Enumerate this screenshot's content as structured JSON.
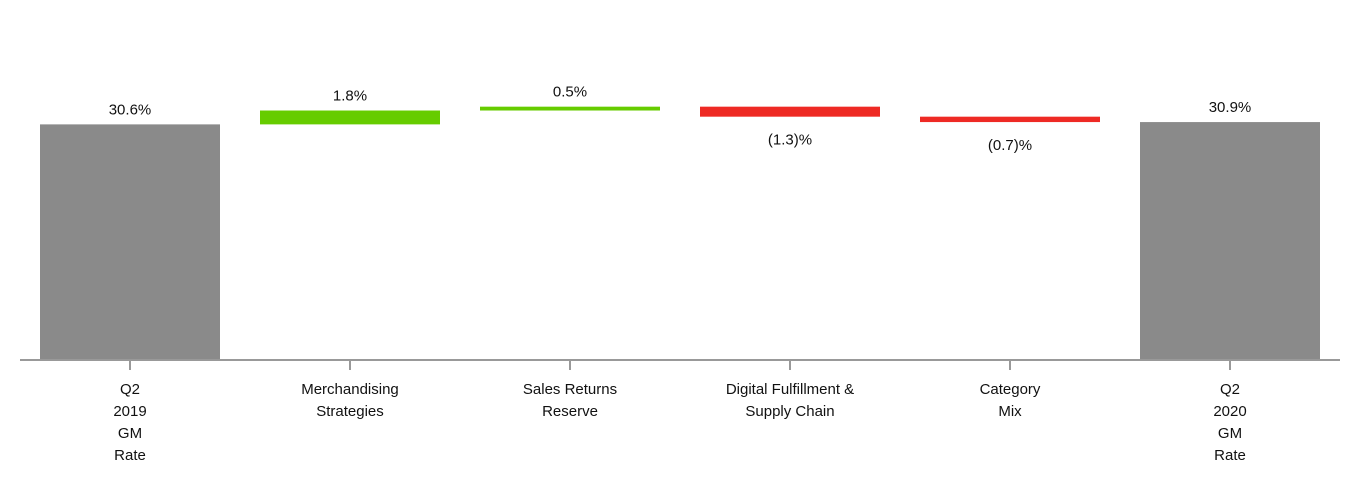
{
  "chart_data": {
    "type": "bar",
    "subtype": "waterfall",
    "categories": [
      [
        "Q2",
        "2019",
        "GM",
        "Rate"
      ],
      [
        "Merchandising",
        "Strategies"
      ],
      [
        "Sales Returns",
        "Reserve"
      ],
      [
        "Digital Fulfillment &",
        "Supply Chain"
      ],
      [
        "Category",
        "Mix"
      ],
      [
        "Q2",
        "2020",
        "GM",
        "Rate"
      ]
    ],
    "values": [
      30.6,
      1.8,
      0.5,
      -1.3,
      -0.7,
      30.9
    ],
    "kinds": [
      "total",
      "delta",
      "delta",
      "delta",
      "delta",
      "total"
    ],
    "data_labels": [
      "30.6%",
      "1.8%",
      "0.5%",
      "(1.3)%",
      "(0.7)%",
      "30.9%"
    ],
    "title": "",
    "xlabel": "",
    "ylabel": "",
    "y_axis_visible": false,
    "grid": false,
    "legend": "none",
    "colors": {
      "total": "#8a8a8a",
      "increase": "#66cc00",
      "decrease": "#ee2a24",
      "axis": "#999999"
    }
  }
}
